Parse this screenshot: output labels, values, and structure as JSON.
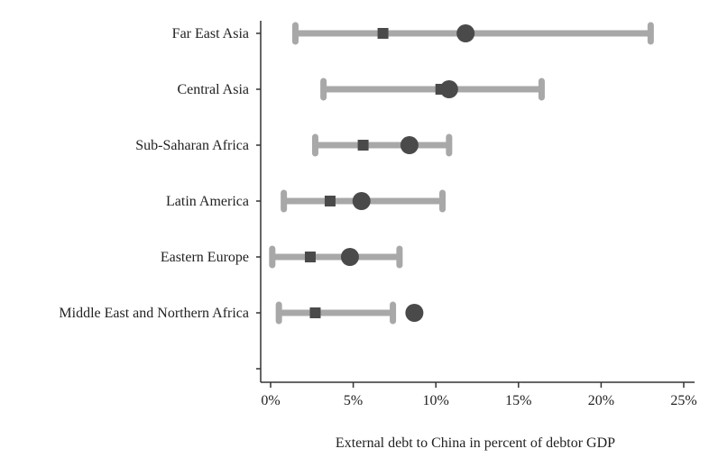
{
  "chart_data": {
    "type": "dot-range",
    "xlabel": "External debt to China in percent of debtor GDP",
    "ylabel": "",
    "xlim": [
      0,
      25
    ],
    "xticks": [
      0,
      5,
      10,
      15,
      20,
      25
    ],
    "xtick_labels": [
      "0%",
      "5%",
      "10%",
      "15%",
      "20%",
      "25%"
    ],
    "grid": false,
    "categories": [
      "Far East Asia",
      "Central Asia",
      "Sub-Saharan Africa",
      "Latin America",
      "Eastern Europe",
      "Middle East and Northern Africa"
    ],
    "range_low": [
      1.5,
      3.2,
      2.7,
      0.8,
      0.1,
      0.5
    ],
    "range_high": [
      23.0,
      16.4,
      10.8,
      10.4,
      7.8,
      7.4
    ],
    "square_values": [
      6.8,
      10.3,
      5.6,
      3.6,
      2.4,
      2.7
    ],
    "circle_values": [
      11.8,
      10.8,
      8.4,
      5.5,
      4.8,
      8.7
    ],
    "colors": {
      "range": "#a8a8a8",
      "marker": "#4a4a4a",
      "axis": "#333333"
    }
  }
}
